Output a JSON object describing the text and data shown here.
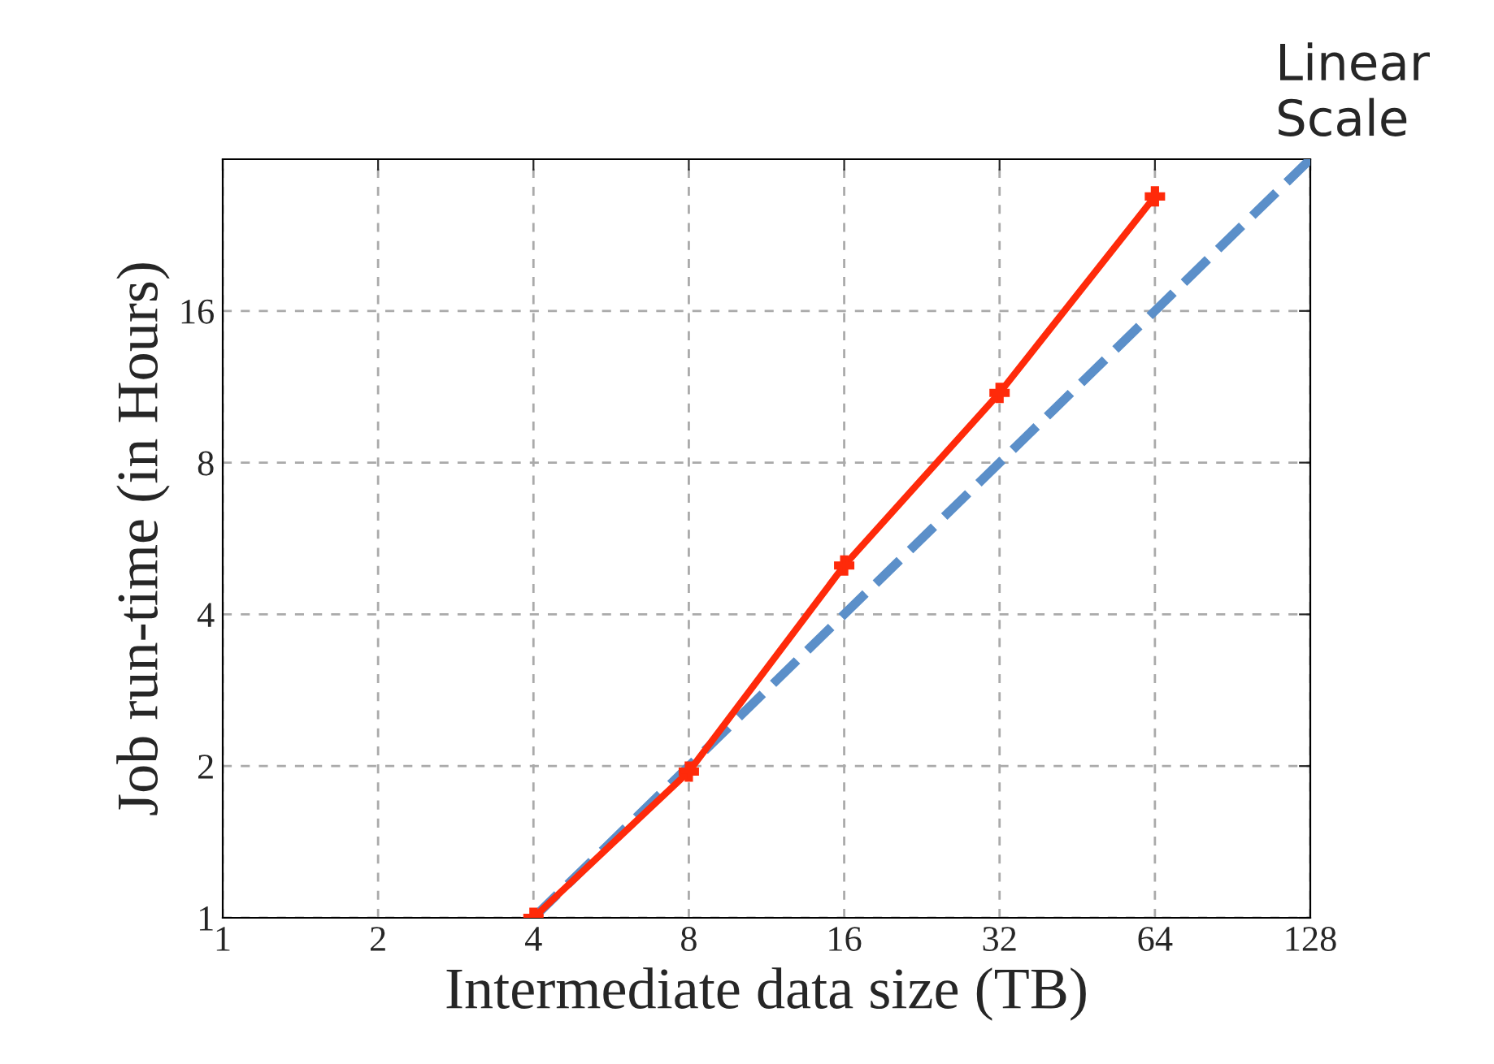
{
  "chart_data": {
    "type": "line",
    "xlabel": "Intermediate data size (TB)",
    "ylabel": "Job run-time (in Hours)",
    "annotations": [
      "Linear Scale"
    ],
    "log": "xy",
    "xlim": [
      1,
      128
    ],
    "ylim": [
      1,
      32
    ],
    "xticks": [
      1,
      2,
      4,
      8,
      16,
      32,
      64,
      128
    ],
    "yticks": [
      1,
      2,
      4,
      8,
      16
    ],
    "grid": true,
    "series": [
      {
        "x": [
          4,
          128
        ],
        "values": [
          1,
          32
        ],
        "color": "#5b8fc9",
        "line_style": "dashed",
        "marker": "none"
      },
      {
        "x": [
          4,
          8,
          16,
          32,
          64
        ],
        "values": [
          1,
          1.95,
          5,
          11,
          27
        ],
        "color": "#ff2a0a",
        "line_style": "solid",
        "marker": "cross"
      }
    ]
  }
}
